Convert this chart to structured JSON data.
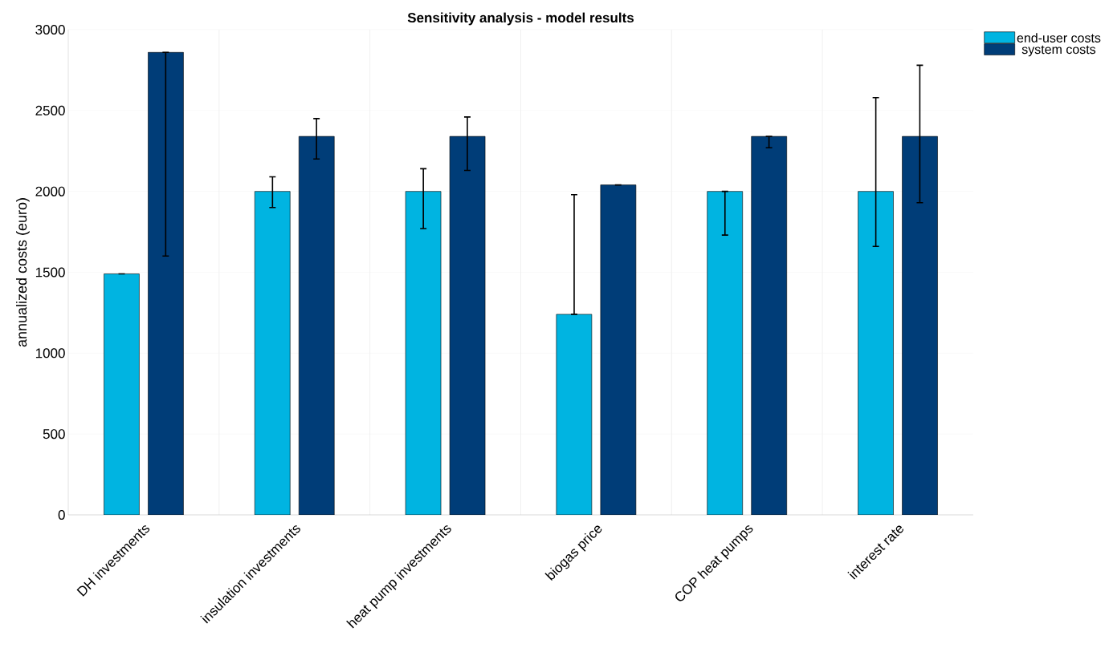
{
  "chart_data": {
    "type": "bar",
    "title": "Sensitivity analysis - model results",
    "ylabel": "annualized costs (euro)",
    "categories": [
      "DH investments",
      "insulation investments",
      "heat pump investments",
      "biogas price",
      "COP heat pumps",
      "interest rate"
    ],
    "series": [
      {
        "name": "end-user costs",
        "color": "#00b4e1",
        "values": [
          1490,
          2000,
          2000,
          1240,
          2000,
          2000
        ],
        "errors": [
          [
            1490,
            1490
          ],
          [
            1900,
            2090
          ],
          [
            1770,
            2140
          ],
          [
            1240,
            1980
          ],
          [
            1730,
            2000
          ],
          [
            1660,
            2580
          ]
        ]
      },
      {
        "name": "system costs",
        "color": "#003d78",
        "values": [
          2860,
          2340,
          2340,
          2040,
          2340,
          2340
        ],
        "errors": [
          [
            1600,
            2860
          ],
          [
            2200,
            2450
          ],
          [
            2130,
            2460
          ],
          [
            2040,
            2040
          ],
          [
            2270,
            2340
          ],
          [
            1930,
            2780
          ]
        ]
      }
    ],
    "ylim": [
      0,
      3000
    ],
    "yticks": [
      0,
      500,
      1000,
      1500,
      2000,
      2500,
      3000
    ],
    "grid": true,
    "legend": "top right"
  }
}
